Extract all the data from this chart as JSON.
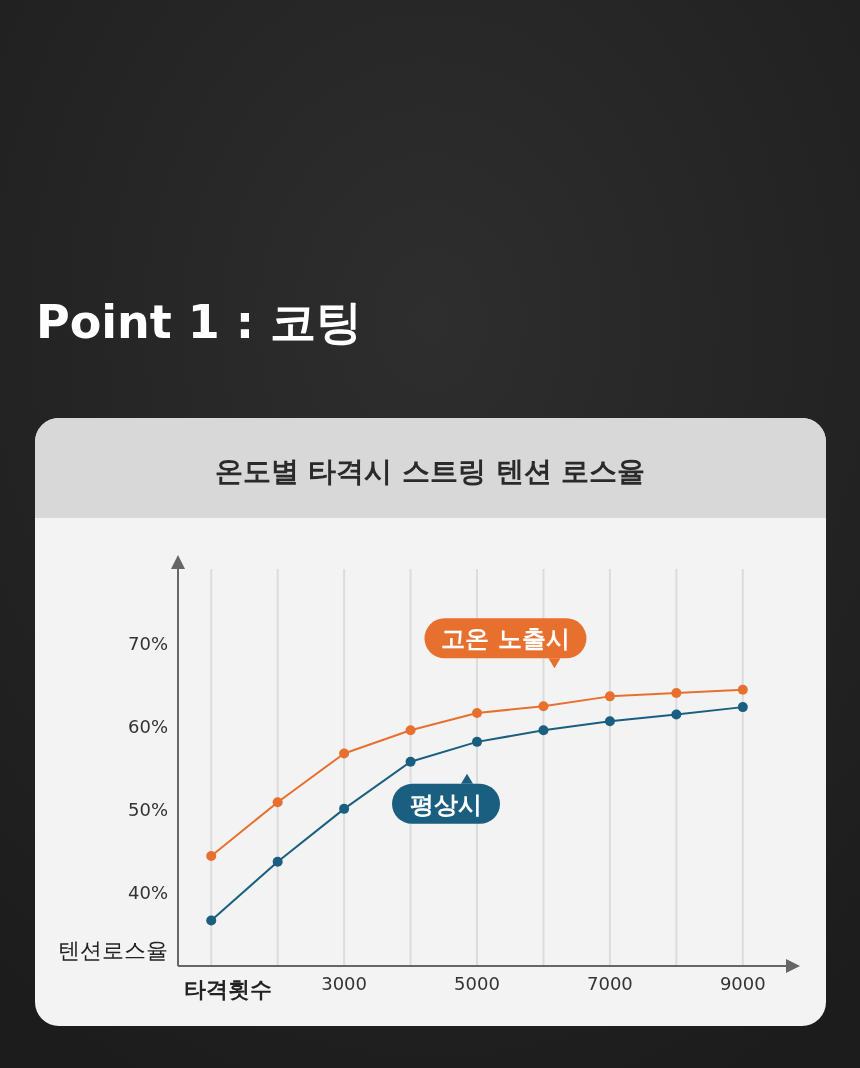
{
  "chart_data": {
    "type": "line",
    "title": "Point 1 : 코팅",
    "subtitle": "온도별 타격시 스트링 텐션 로스율",
    "xlabel": "타격횟수",
    "ylabel": "텐션로스율",
    "x": [
      1000,
      2000,
      3000,
      4000,
      5000,
      6000,
      7000,
      8000,
      9000
    ],
    "series": [
      {
        "name": "고온 노출시",
        "color": "#e8702f",
        "values": [
          44.3,
          50.8,
          56.7,
          59.5,
          61.6,
          62.4,
          63.6,
          64.0,
          64.4
        ]
      },
      {
        "name": "평상시",
        "color": "#1a5e80",
        "values": [
          36.5,
          43.6,
          50.0,
          55.7,
          58.1,
          59.5,
          60.6,
          61.4,
          62.3
        ]
      }
    ],
    "xlim": [
      500,
      9650
    ],
    "ylim": [
      31,
      79
    ],
    "xticks": [
      {
        "value": 1000,
        "label": null
      },
      {
        "value": 2000,
        "label": null
      },
      3000,
      {
        "value": 4000,
        "label": null
      },
      5000,
      {
        "value": 6000,
        "label": null
      },
      7000,
      {
        "value": 8000,
        "label": null
      },
      9000
    ],
    "yticks": [
      {
        "value": 40,
        "label": "40%"
      },
      {
        "value": 50,
        "label": "50%"
      },
      {
        "value": 60,
        "label": "60%"
      },
      {
        "value": 70,
        "label": "70%"
      }
    ],
    "grid": "x",
    "legend": "bottom left",
    "marker": "circle",
    "line_style": "solid"
  }
}
